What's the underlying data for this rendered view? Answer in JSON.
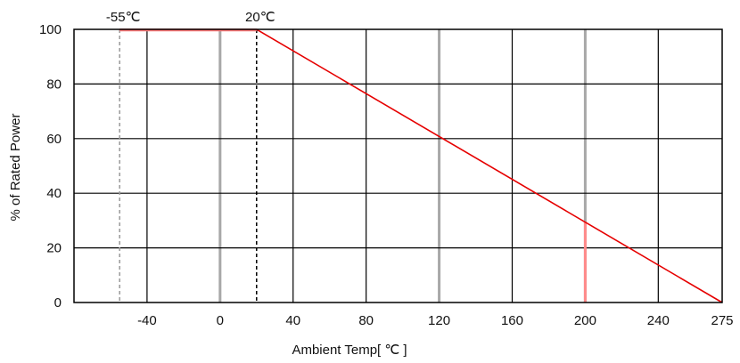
{
  "chart_data": {
    "type": "line",
    "xlabel": "Ambient Temp[ ℃ ]",
    "ylabel": "% of Rated Power",
    "xlim": [
      -80,
      275
    ],
    "ylim": [
      0,
      100
    ],
    "x_ticks": [
      -40,
      0,
      40,
      80,
      120,
      160,
      200,
      240,
      275
    ],
    "y_ticks": [
      0,
      20,
      40,
      60,
      80,
      100
    ],
    "grid": true,
    "series": [
      {
        "points": [
          [
            -55,
            100
          ],
          [
            20,
            100
          ],
          [
            275,
            0
          ]
        ],
        "color": "#e60000"
      }
    ],
    "annotations": [
      {
        "text": "-55℃",
        "x": -55,
        "y": 100,
        "line_style": "dashed",
        "color": "#999999"
      },
      {
        "text": "20℃",
        "x": 20,
        "y": 100,
        "line_style": "dashed",
        "color": "#000000"
      }
    ],
    "vertical_marker": {
      "x": 200,
      "color": "#ff8a8a"
    },
    "gray_gridlines_x": [
      0,
      120,
      200
    ],
    "colors": {
      "line": "#e60000",
      "grid": "#000000",
      "grid_light": "#a8a8a8"
    }
  }
}
